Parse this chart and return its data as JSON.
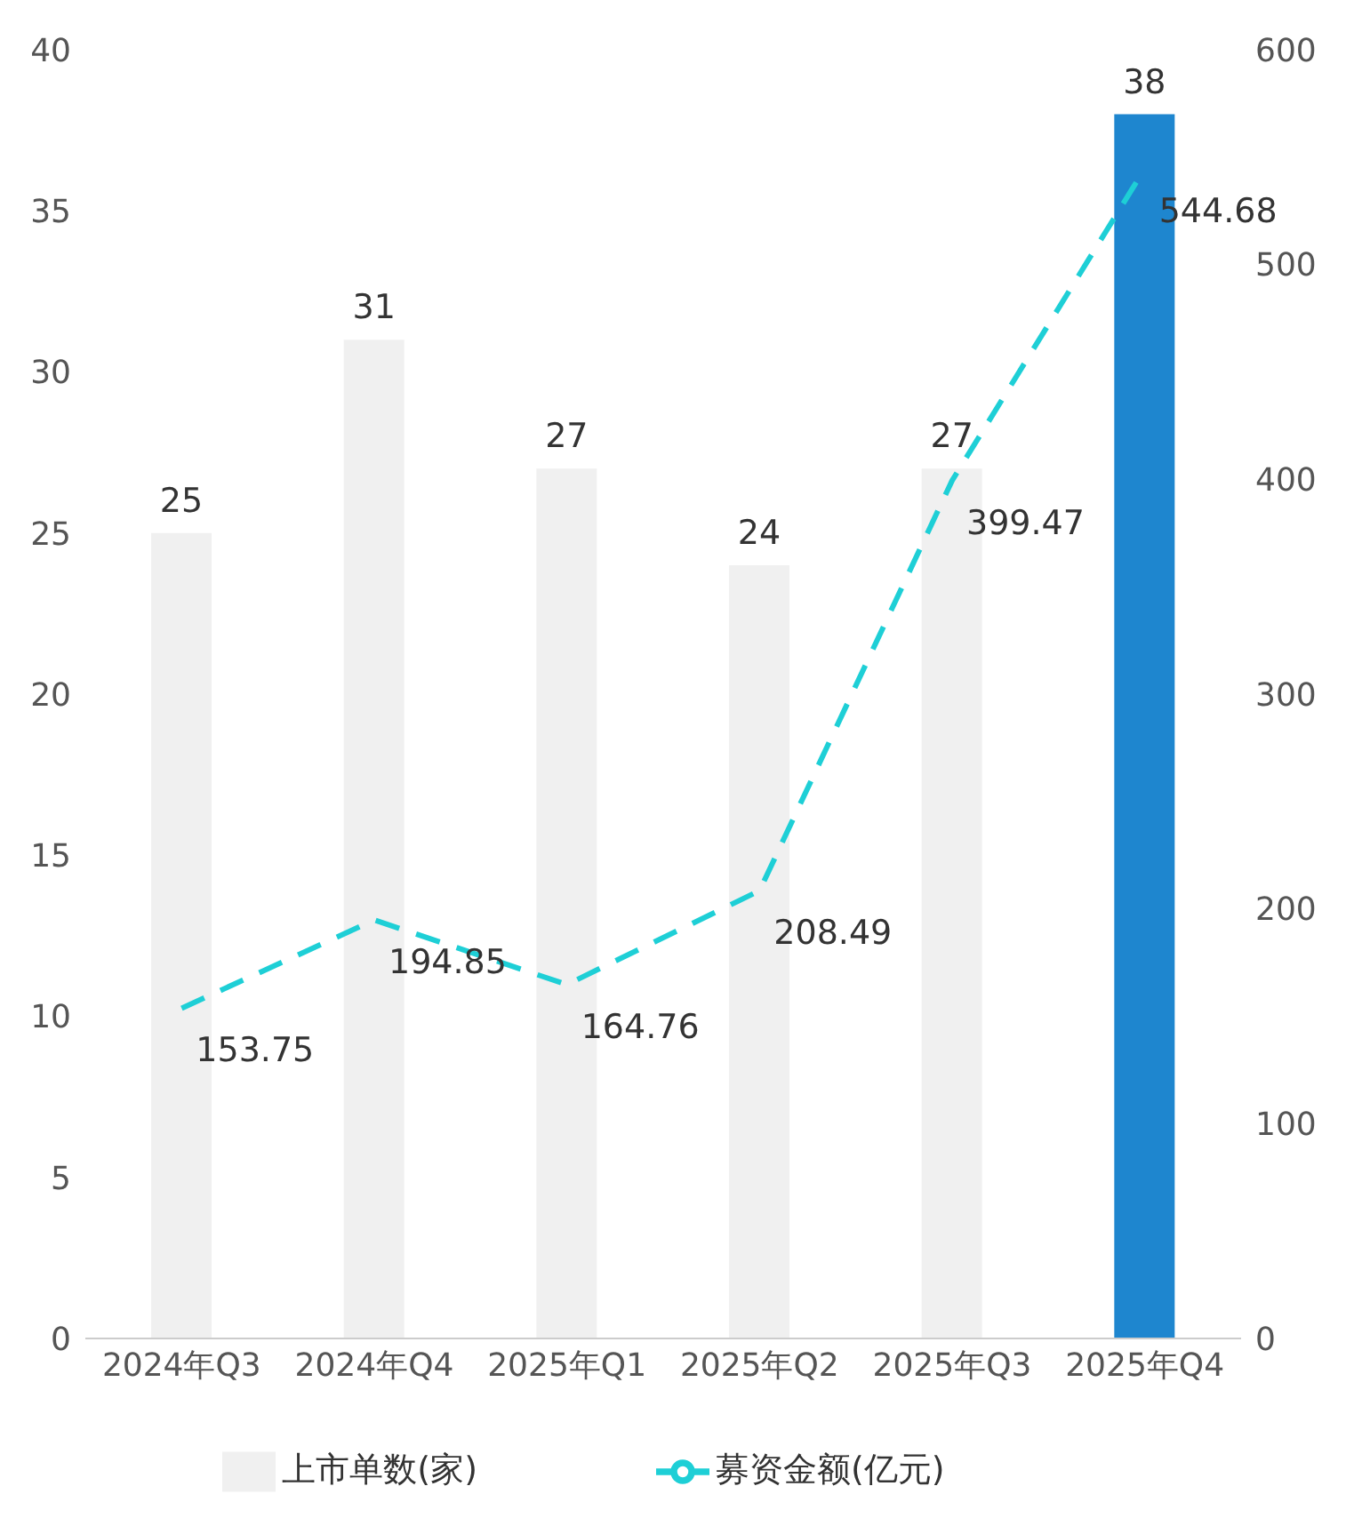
{
  "chart_data": {
    "type": "bar",
    "categories": [
      "2024年Q3",
      "2024年Q4",
      "2025年Q1",
      "2025年Q2",
      "2025年Q3",
      "2025年Q4"
    ],
    "series": [
      {
        "name": "上市单数(家)",
        "colors": [
          "#f0f0f0",
          "#f0f0f0",
          "#f0f0f0",
          "#f0f0f0",
          "#f0f0f0",
          "#1e86cf"
        ],
        "values": [
          25,
          31,
          27,
          24,
          27,
          38
        ]
      },
      {
        "name": "募资金额(亿元)",
        "type": "line",
        "axis": "y2",
        "color": "#1ecfd6",
        "line_style": "dashed",
        "marker": "none",
        "values": [
          153.75,
          194.85,
          164.76,
          208.49,
          399.47,
          544.68
        ]
      }
    ],
    "ylim": [
      0,
      40
    ],
    "yticks": [
      0,
      5,
      10,
      15,
      20,
      25,
      30,
      35,
      40
    ],
    "y2lim": [
      0,
      600
    ],
    "y2ticks": [
      0,
      100,
      200,
      300,
      400,
      500,
      600
    ],
    "data_labels": true,
    "legend": "bottom"
  }
}
